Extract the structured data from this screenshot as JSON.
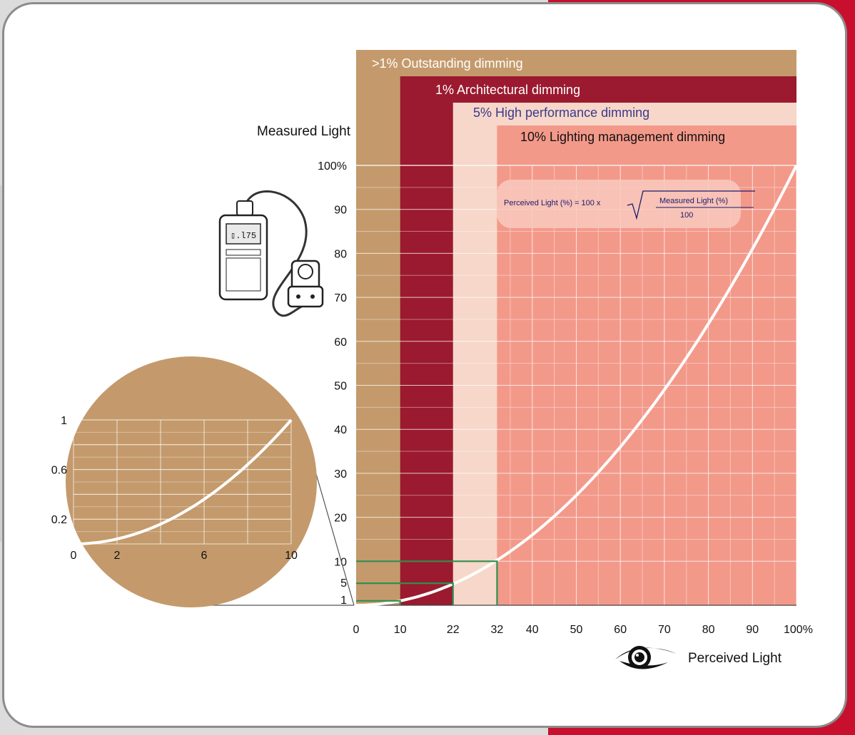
{
  "colors": {
    "outstanding": "#c49a6c",
    "architectural": "#9b1a2f",
    "high_performance": "#f7d7c9",
    "management": "#f3998a",
    "curve": "#ffffff",
    "marker": "#2f8f4f",
    "formula_box": "#f8c9bd",
    "text_dark": "#111111",
    "text_blue": "#3a3a8c"
  },
  "bands": [
    {
      "label": ">1% Outstanding dimming",
      "x_start": 0
    },
    {
      "label": "1% Architectural dimming",
      "x_start": 10
    },
    {
      "label": "5% High performance dimming",
      "x_start": 22
    },
    {
      "label": "10% Lighting management dimming",
      "x_start": 32
    }
  ],
  "icons": {
    "meter": "light-meter-icon",
    "eye": "eye-icon"
  },
  "chart_data": [
    {
      "type": "line",
      "title": "",
      "xlabel": "Perceived Light",
      "ylabel": "Measured Light",
      "xlim": [
        0,
        100
      ],
      "ylim": [
        0,
        100
      ],
      "x_ticks": [
        "0",
        "10",
        "22",
        "32",
        "40",
        "50",
        "60",
        "70",
        "80",
        "90",
        "100%"
      ],
      "x_tick_values": [
        0,
        10,
        22,
        32,
        40,
        50,
        60,
        70,
        80,
        90,
        100
      ],
      "y_ticks": [
        "1",
        "5",
        "10",
        "20",
        "30",
        "40",
        "50",
        "60",
        "70",
        "80",
        "90",
        "100%"
      ],
      "y_tick_values": [
        1,
        5,
        10,
        20,
        30,
        40,
        50,
        60,
        70,
        80,
        90,
        100
      ],
      "grid": true,
      "series": [
        {
          "x": [
            0,
            10,
            20,
            22,
            30,
            32,
            40,
            50,
            60,
            70,
            80,
            90,
            100
          ],
          "y": [
            0,
            1,
            4,
            5,
            9,
            10,
            16,
            25,
            36,
            49,
            64,
            81,
            100
          ]
        }
      ],
      "markers": [
        {
          "x": 10,
          "y": 1
        },
        {
          "x": 22,
          "y": 5
        },
        {
          "x": 32,
          "y": 10
        }
      ],
      "formula": {
        "lhs": "Perceived Light (%) = 100 x",
        "numerator": "Measured Light (%)",
        "denominator": "100"
      }
    },
    {
      "type": "line",
      "title": "",
      "xlim": [
        0,
        10
      ],
      "ylim": [
        0,
        1
      ],
      "x_ticks": [
        "0",
        "2",
        "6",
        "10"
      ],
      "x_tick_values": [
        0,
        2,
        6,
        10
      ],
      "y_ticks": [
        "0.2",
        "0.6",
        "1"
      ],
      "y_tick_values": [
        0.2,
        0.6,
        1
      ],
      "grid": true,
      "series": [
        {
          "x": [
            0,
            1,
            2,
            3,
            4,
            5,
            6,
            7,
            8,
            9,
            10
          ],
          "y": [
            0,
            0.01,
            0.04,
            0.09,
            0.16,
            0.25,
            0.36,
            0.49,
            0.64,
            0.81,
            1
          ]
        }
      ]
    }
  ]
}
